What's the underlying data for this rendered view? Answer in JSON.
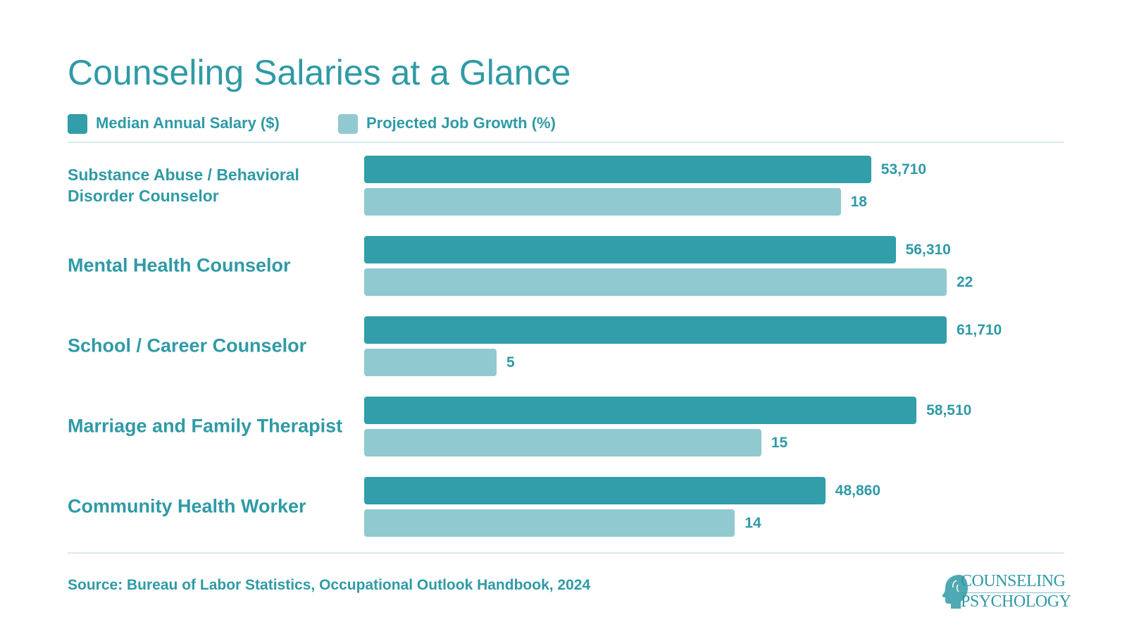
{
  "title": "Counseling Salaries at a Glance",
  "source": "Source: Bureau of Labor Statistics, Occupational Outlook Handbook, 2024",
  "logo": {
    "line1": "COUNSELING",
    "line2": "PSYCHOLOGY",
    "icon": "head-profile-icon"
  },
  "colors": {
    "text": "#2f9aa6",
    "salary": "#319ea9",
    "growth": "#91c9d1",
    "rule": "#dbe9ec"
  },
  "chart_data": {
    "type": "bar",
    "orientation": "horizontal",
    "title": "Counseling Salaries at a Glance",
    "categories": [
      "Substance Abuse / Behavioral Disorder Counselor",
      "Mental Health Counselor",
      "School / Career Counselor",
      "Marriage and Family Therapist",
      "Community Health Worker"
    ],
    "series": [
      {
        "name": "Median Annual Salary ($)",
        "values": [
          53710,
          56310,
          61710,
          58510,
          48860
        ],
        "labels": [
          "53,710",
          "56,310",
          "61,710",
          "58,510",
          "48,860"
        ]
      },
      {
        "name": "Projected Job Growth (%)",
        "values": [
          18,
          22,
          5,
          15,
          14
        ],
        "labels": [
          "18",
          "22",
          "5",
          "15",
          "14"
        ]
      }
    ],
    "legend": "top-left",
    "grid": false
  }
}
